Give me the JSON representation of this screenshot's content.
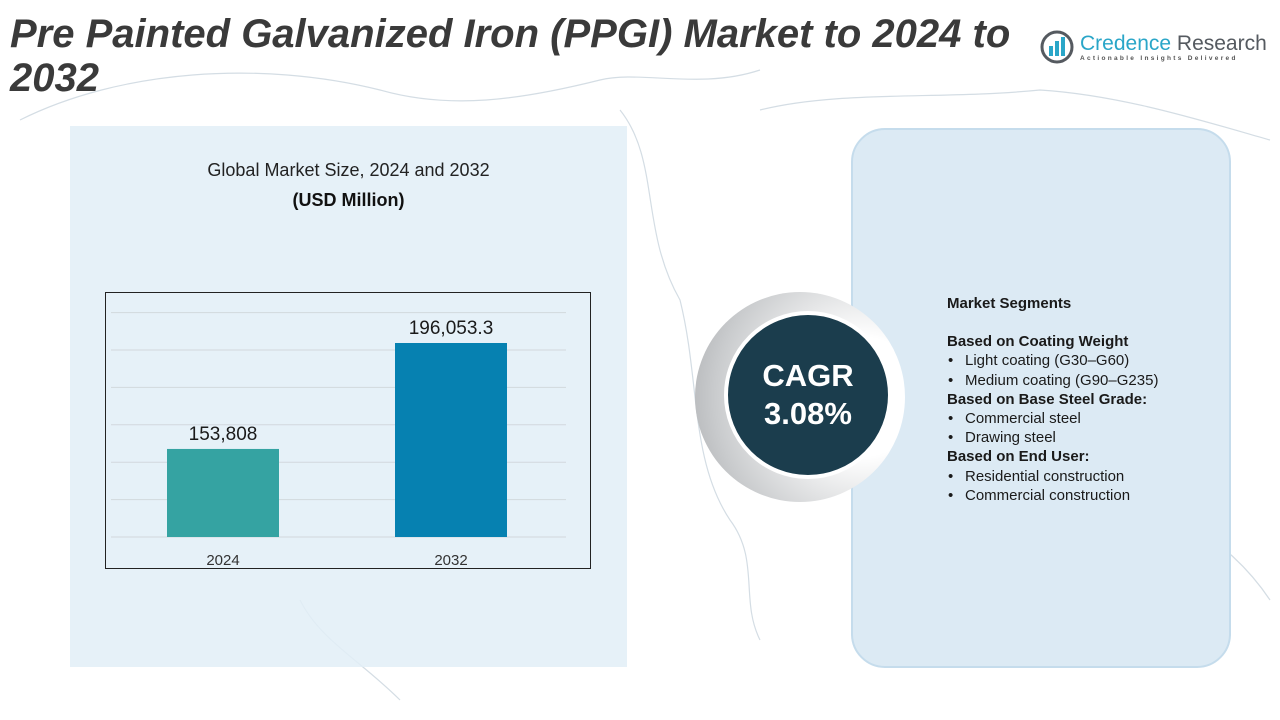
{
  "header": {
    "title": "Pre Painted Galvanized Iron (PPGI) Market to 2024 to 2032"
  },
  "logo": {
    "name_part1": "Credence",
    "name_part2": "Research",
    "tagline": "Actionable Insights Delivered"
  },
  "chart_data": {
    "type": "bar",
    "title": "Global Market Size, 2024 and 2032",
    "subtitle": "(USD Million)",
    "categories": [
      "2024",
      "2032"
    ],
    "values": [
      153808,
      196053.3
    ],
    "data_labels": [
      "153,808",
      "196,053.3"
    ],
    "colors": [
      "#35a3a2",
      "#0681b1"
    ],
    "grid": true,
    "legend": "none"
  },
  "cagr": {
    "label": "CAGR",
    "value": "3.08%"
  },
  "segments": {
    "title": "Market Segments",
    "groups": [
      {
        "heading": "Based on Coating Weight",
        "items": [
          "Light coating (G30–G60)",
          "Medium coating (G90–G235)"
        ]
      },
      {
        "heading": "Based on Base Steel Grade:",
        "items": [
          "Commercial steel",
          "Drawing steel"
        ]
      },
      {
        "heading": "Based on End User:",
        "items": [
          "Residential construction",
          "Commercial construction"
        ]
      }
    ]
  }
}
